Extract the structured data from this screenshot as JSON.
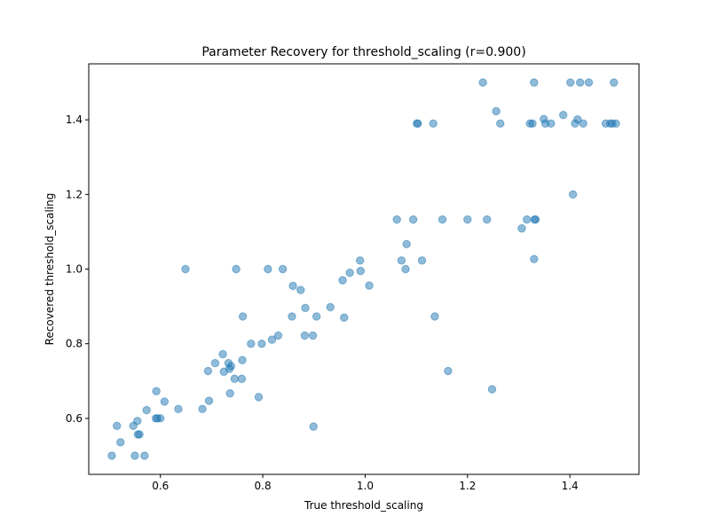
{
  "chart_data": {
    "type": "scatter",
    "title": "Parameter Recovery for threshold_scaling (r=0.900)",
    "xlabel": "True threshold_scaling",
    "ylabel": "Recovered threshold_scaling",
    "xlim": [
      0.46,
      1.535
    ],
    "ylim": [
      0.45,
      1.55
    ],
    "xticks": [
      "0.6",
      "0.8",
      "1.0",
      "1.2",
      "1.4"
    ],
    "yticks": [
      "0.6",
      "0.8",
      "1.0",
      "1.2",
      "1.4"
    ],
    "grid": false,
    "marker_color": "#1f77b4",
    "marker_alpha": 0.5,
    "points": [
      {
        "x": 0.505,
        "y": 0.5
      },
      {
        "x": 0.515,
        "y": 0.58
      },
      {
        "x": 0.522,
        "y": 0.536
      },
      {
        "x": 0.547,
        "y": 0.58
      },
      {
        "x": 0.55,
        "y": 0.5
      },
      {
        "x": 0.555,
        "y": 0.593
      },
      {
        "x": 0.556,
        "y": 0.557
      },
      {
        "x": 0.559,
        "y": 0.557
      },
      {
        "x": 0.569,
        "y": 0.5
      },
      {
        "x": 0.573,
        "y": 0.622
      },
      {
        "x": 0.591,
        "y": 0.6
      },
      {
        "x": 0.594,
        "y": 0.6
      },
      {
        "x": 0.592,
        "y": 0.673
      },
      {
        "x": 0.6,
        "y": 0.6
      },
      {
        "x": 0.608,
        "y": 0.645
      },
      {
        "x": 0.635,
        "y": 0.625
      },
      {
        "x": 0.649,
        "y": 1.0
      },
      {
        "x": 0.682,
        "y": 0.625
      },
      {
        "x": 0.693,
        "y": 0.727
      },
      {
        "x": 0.695,
        "y": 0.647
      },
      {
        "x": 0.707,
        "y": 0.748
      },
      {
        "x": 0.722,
        "y": 0.772
      },
      {
        "x": 0.724,
        "y": 0.725
      },
      {
        "x": 0.733,
        "y": 0.748
      },
      {
        "x": 0.735,
        "y": 0.733
      },
      {
        "x": 0.738,
        "y": 0.74
      },
      {
        "x": 0.736,
        "y": 0.667
      },
      {
        "x": 0.745,
        "y": 0.706
      },
      {
        "x": 0.748,
        "y": 1.0
      },
      {
        "x": 0.759,
        "y": 0.706
      },
      {
        "x": 0.76,
        "y": 0.756
      },
      {
        "x": 0.761,
        "y": 0.873
      },
      {
        "x": 0.777,
        "y": 0.8
      },
      {
        "x": 0.792,
        "y": 0.657
      },
      {
        "x": 0.798,
        "y": 0.8
      },
      {
        "x": 0.81,
        "y": 1.0
      },
      {
        "x": 0.818,
        "y": 0.811
      },
      {
        "x": 0.83,
        "y": 0.822
      },
      {
        "x": 0.839,
        "y": 1.0
      },
      {
        "x": 0.857,
        "y": 0.873
      },
      {
        "x": 0.859,
        "y": 0.955
      },
      {
        "x": 0.874,
        "y": 0.944
      },
      {
        "x": 0.882,
        "y": 0.822
      },
      {
        "x": 0.883,
        "y": 0.896
      },
      {
        "x": 0.898,
        "y": 0.822
      },
      {
        "x": 0.899,
        "y": 0.578
      },
      {
        "x": 0.905,
        "y": 0.873
      },
      {
        "x": 0.932,
        "y": 0.898
      },
      {
        "x": 0.956,
        "y": 0.97
      },
      {
        "x": 0.959,
        "y": 0.87
      },
      {
        "x": 0.97,
        "y": 0.99
      },
      {
        "x": 0.99,
        "y": 1.023
      },
      {
        "x": 0.991,
        "y": 0.995
      },
      {
        "x": 1.008,
        "y": 0.956
      },
      {
        "x": 1.062,
        "y": 1.133
      },
      {
        "x": 1.071,
        "y": 1.023
      },
      {
        "x": 1.079,
        "y": 1.0
      },
      {
        "x": 1.081,
        "y": 1.067
      },
      {
        "x": 1.094,
        "y": 1.133
      },
      {
        "x": 1.101,
        "y": 1.39
      },
      {
        "x": 1.103,
        "y": 1.39
      },
      {
        "x": 1.111,
        "y": 1.023
      },
      {
        "x": 1.133,
        "y": 1.39
      },
      {
        "x": 1.136,
        "y": 0.873
      },
      {
        "x": 1.151,
        "y": 1.133
      },
      {
        "x": 1.162,
        "y": 0.727
      },
      {
        "x": 1.2,
        "y": 1.133
      },
      {
        "x": 1.23,
        "y": 1.5
      },
      {
        "x": 1.238,
        "y": 1.133
      },
      {
        "x": 1.248,
        "y": 0.678
      },
      {
        "x": 1.256,
        "y": 1.423
      },
      {
        "x": 1.264,
        "y": 1.39
      },
      {
        "x": 1.306,
        "y": 1.109
      },
      {
        "x": 1.316,
        "y": 1.133
      },
      {
        "x": 1.322,
        "y": 1.39
      },
      {
        "x": 1.327,
        "y": 1.39
      },
      {
        "x": 1.33,
        "y": 1.5
      },
      {
        "x": 1.33,
        "y": 1.027
      },
      {
        "x": 1.331,
        "y": 1.133
      },
      {
        "x": 1.333,
        "y": 1.133
      },
      {
        "x": 1.349,
        "y": 1.402
      },
      {
        "x": 1.352,
        "y": 1.39
      },
      {
        "x": 1.363,
        "y": 1.39
      },
      {
        "x": 1.387,
        "y": 1.413
      },
      {
        "x": 1.401,
        "y": 1.5
      },
      {
        "x": 1.406,
        "y": 1.2
      },
      {
        "x": 1.41,
        "y": 1.39
      },
      {
        "x": 1.415,
        "y": 1.401
      },
      {
        "x": 1.42,
        "y": 1.5
      },
      {
        "x": 1.426,
        "y": 1.39
      },
      {
        "x": 1.437,
        "y": 1.5
      },
      {
        "x": 1.47,
        "y": 1.39
      },
      {
        "x": 1.479,
        "y": 1.39
      },
      {
        "x": 1.483,
        "y": 1.39
      },
      {
        "x": 1.486,
        "y": 1.5
      },
      {
        "x": 1.49,
        "y": 1.39
      }
    ]
  }
}
